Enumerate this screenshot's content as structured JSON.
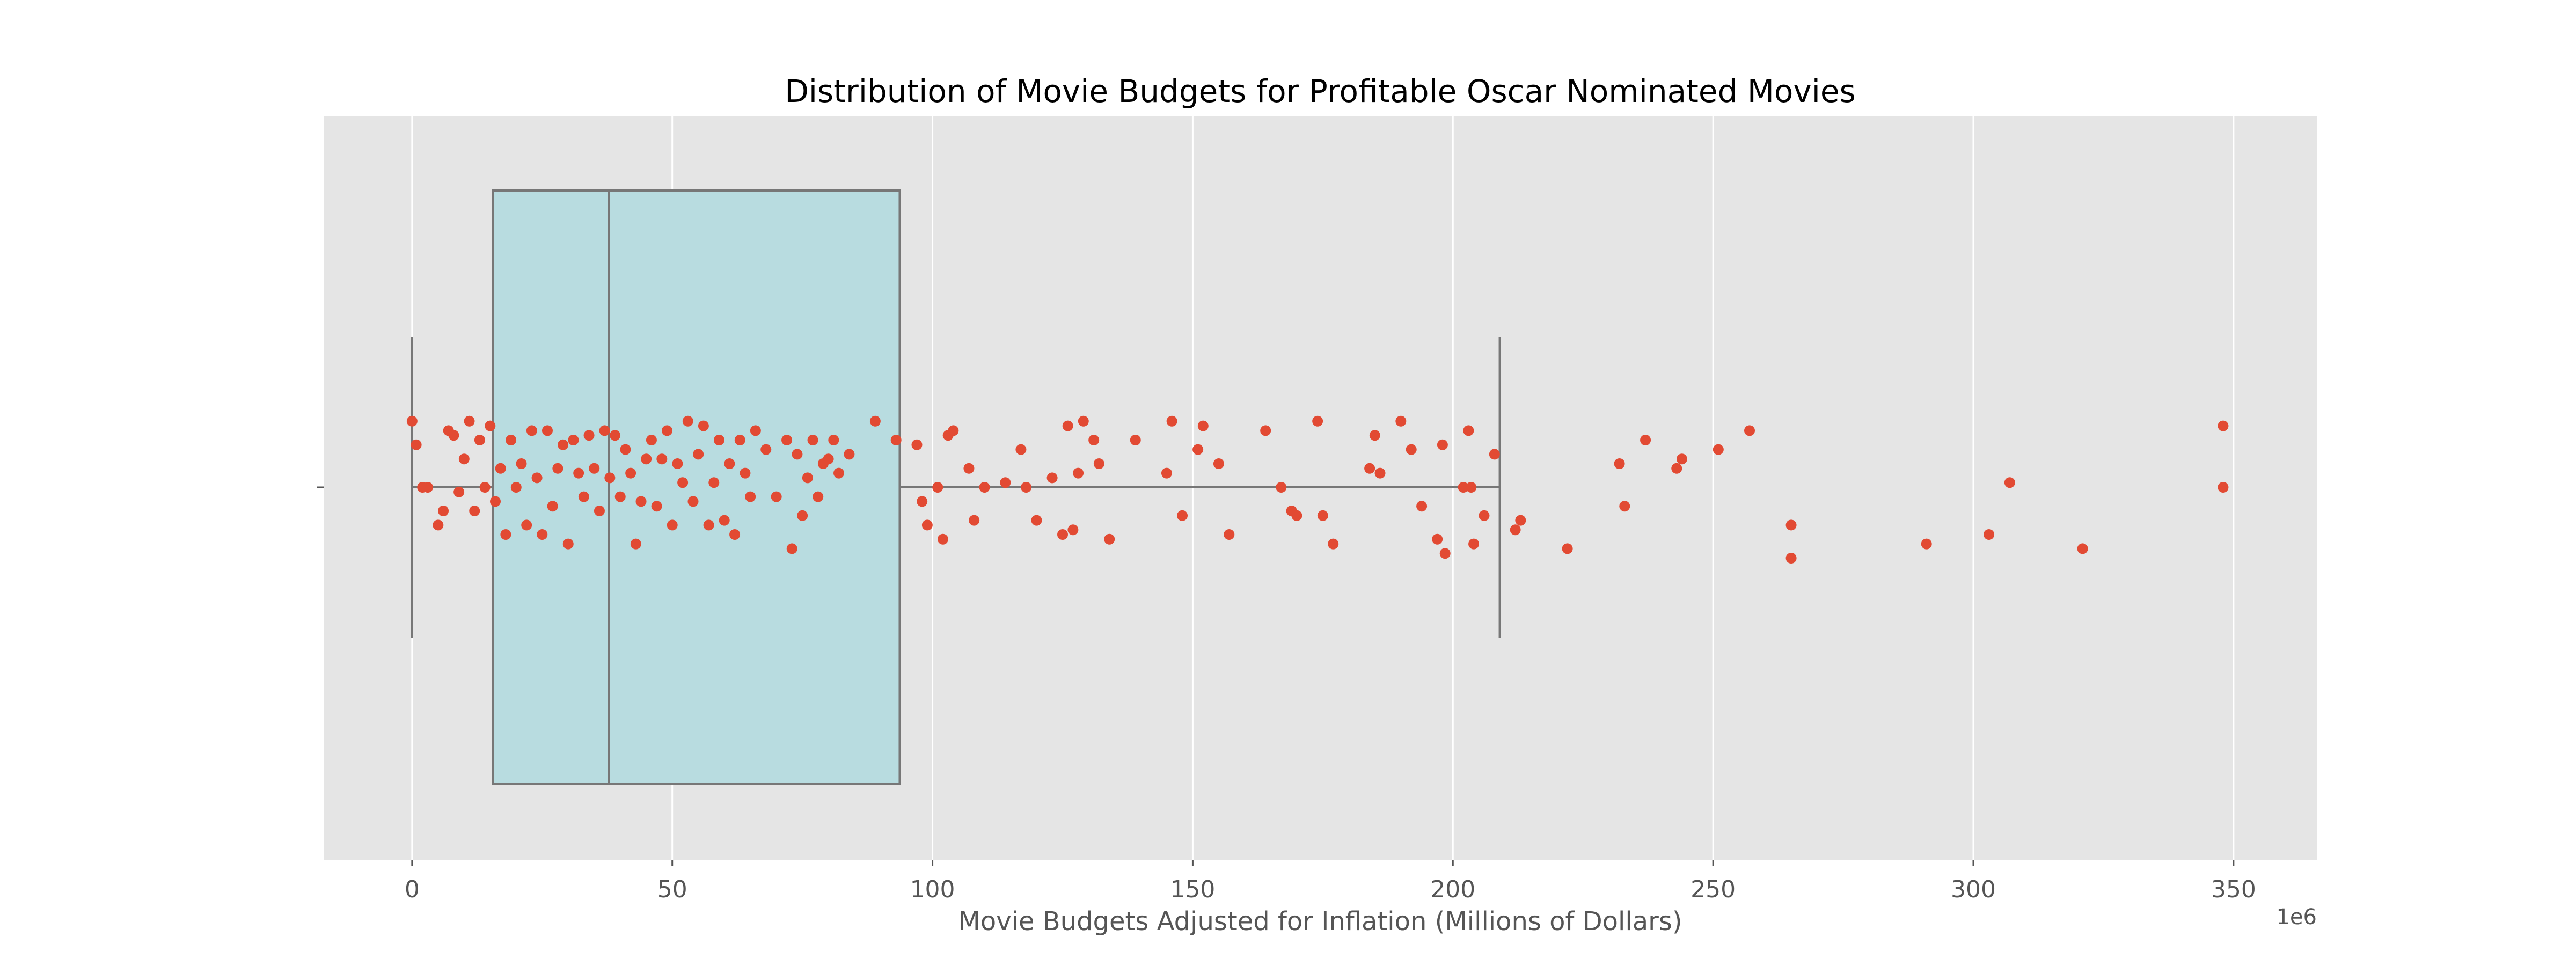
{
  "chart_data": {
    "type": "box",
    "title": "Distribution of Movie Budgets for Profitable Oscar Nominated Movies",
    "xlabel": "Movie Budgets Adjusted for Inflation (Millions of Dollars)",
    "ylabel": "",
    "x_offset_label": "1e6",
    "xlim": [
      -17000000,
      366000000
    ],
    "xticks": [
      0,
      50000000,
      100000000,
      150000000,
      200000000,
      250000000,
      300000000,
      350000000
    ],
    "xtick_labels": [
      "0",
      "50",
      "100",
      "150",
      "200",
      "250",
      "300",
      "350"
    ],
    "grid": true,
    "colors": {
      "plot_background": "#e5e5e5",
      "gridline": "#ffffff",
      "box_fill": "#b8dce0",
      "box_edge": "#777777",
      "point": "#e24a33"
    },
    "box": {
      "whisker_low": 0,
      "q1": 15500000,
      "median": 37800000,
      "q3": 93700000,
      "whisker_high": 209000000
    },
    "points": [
      [
        0,
        0.14
      ],
      [
        0.8,
        0.09
      ],
      [
        2,
        0.0
      ],
      [
        3,
        0.0
      ],
      [
        5,
        -0.08
      ],
      [
        6,
        -0.05
      ],
      [
        7,
        0.12
      ],
      [
        8,
        0.11
      ],
      [
        9,
        -0.01
      ],
      [
        10,
        0.06
      ],
      [
        11,
        0.14
      ],
      [
        12,
        -0.05
      ],
      [
        13,
        0.1
      ],
      [
        14,
        0.0
      ],
      [
        15,
        0.13
      ],
      [
        16,
        -0.03
      ],
      [
        17,
        0.04
      ],
      [
        18,
        -0.1
      ],
      [
        19,
        0.1
      ],
      [
        20,
        0.0
      ],
      [
        21,
        0.05
      ],
      [
        22,
        -0.08
      ],
      [
        23,
        0.12
      ],
      [
        24,
        0.02
      ],
      [
        25,
        -0.1
      ],
      [
        26,
        0.12
      ],
      [
        27,
        -0.04
      ],
      [
        28,
        0.04
      ],
      [
        29,
        0.09
      ],
      [
        30,
        -0.12
      ],
      [
        31,
        0.1
      ],
      [
        32,
        0.03
      ],
      [
        33,
        -0.02
      ],
      [
        34,
        0.11
      ],
      [
        35,
        0.04
      ],
      [
        36,
        -0.05
      ],
      [
        37,
        0.12
      ],
      [
        38,
        0.02
      ],
      [
        39,
        0.11
      ],
      [
        40,
        -0.02
      ],
      [
        41,
        0.08
      ],
      [
        42,
        0.03
      ],
      [
        43,
        -0.12
      ],
      [
        44,
        -0.03
      ],
      [
        45,
        0.06
      ],
      [
        46,
        0.1
      ],
      [
        47,
        -0.04
      ],
      [
        48,
        0.06
      ],
      [
        49,
        0.12
      ],
      [
        50,
        -0.08
      ],
      [
        51,
        0.05
      ],
      [
        52,
        0.01
      ],
      [
        53,
        0.14
      ],
      [
        54,
        -0.03
      ],
      [
        55,
        0.07
      ],
      [
        56,
        0.13
      ],
      [
        57,
        -0.08
      ],
      [
        58,
        0.01
      ],
      [
        59,
        0.1
      ],
      [
        60,
        -0.07
      ],
      [
        61,
        0.05
      ],
      [
        62,
        -0.1
      ],
      [
        63,
        0.1
      ],
      [
        64,
        0.03
      ],
      [
        65,
        -0.02
      ],
      [
        66,
        0.12
      ],
      [
        68,
        0.08
      ],
      [
        70,
        -0.02
      ],
      [
        72,
        0.1
      ],
      [
        73,
        -0.13
      ],
      [
        74,
        0.07
      ],
      [
        75,
        -0.06
      ],
      [
        76,
        0.02
      ],
      [
        77,
        0.1
      ],
      [
        78,
        -0.02
      ],
      [
        79,
        0.05
      ],
      [
        80,
        0.06
      ],
      [
        81,
        0.1
      ],
      [
        82,
        0.03
      ],
      [
        84,
        0.07
      ],
      [
        89,
        0.14
      ],
      [
        93,
        0.1
      ],
      [
        97,
        0.09
      ],
      [
        98,
        -0.03
      ],
      [
        99,
        -0.08
      ],
      [
        101,
        0.0
      ],
      [
        102,
        -0.11
      ],
      [
        103,
        0.11
      ],
      [
        104,
        0.12
      ],
      [
        107,
        0.04
      ],
      [
        108,
        -0.07
      ],
      [
        110,
        0.0
      ],
      [
        114,
        0.01
      ],
      [
        117,
        0.08
      ],
      [
        118,
        0.0
      ],
      [
        120,
        -0.07
      ],
      [
        123,
        0.02
      ],
      [
        125,
        -0.1
      ],
      [
        126,
        0.13
      ],
      [
        127,
        -0.09
      ],
      [
        128,
        0.03
      ],
      [
        129,
        0.14
      ],
      [
        131,
        0.1
      ],
      [
        132,
        0.05
      ],
      [
        134,
        -0.11
      ],
      [
        139,
        0.1
      ],
      [
        145,
        0.03
      ],
      [
        146,
        0.14
      ],
      [
        148,
        -0.06
      ],
      [
        151,
        0.08
      ],
      [
        152,
        0.13
      ],
      [
        155,
        0.05
      ],
      [
        157,
        -0.1
      ],
      [
        164,
        0.12
      ],
      [
        167,
        0.0
      ],
      [
        169,
        -0.05
      ],
      [
        170,
        -0.06
      ],
      [
        174,
        0.14
      ],
      [
        175,
        -0.06
      ],
      [
        177,
        -0.12
      ],
      [
        184,
        0.04
      ],
      [
        185,
        0.11
      ],
      [
        186,
        0.03
      ],
      [
        190,
        0.14
      ],
      [
        192,
        0.08
      ],
      [
        194,
        -0.04
      ],
      [
        197,
        -0.11
      ],
      [
        198,
        0.09
      ],
      [
        198.5,
        -0.14
      ],
      [
        202,
        0.0
      ],
      [
        203,
        0.12
      ],
      [
        203.5,
        0.0
      ],
      [
        204,
        -0.12
      ],
      [
        206,
        -0.06
      ],
      [
        208,
        0.07
      ],
      [
        212,
        -0.09
      ],
      [
        213,
        -0.07
      ],
      [
        222,
        -0.13
      ],
      [
        232,
        0.05
      ],
      [
        233,
        -0.04
      ],
      [
        237,
        0.1
      ],
      [
        243,
        0.04
      ],
      [
        244,
        0.06
      ],
      [
        251,
        0.08
      ],
      [
        257,
        0.12
      ],
      [
        265,
        -0.08
      ],
      [
        265,
        -0.15
      ],
      [
        291,
        -0.12
      ],
      [
        303,
        -0.1
      ],
      [
        307,
        0.01
      ],
      [
        321,
        -0.13
      ],
      [
        348,
        0.13
      ],
      [
        348,
        0.0
      ]
    ]
  }
}
